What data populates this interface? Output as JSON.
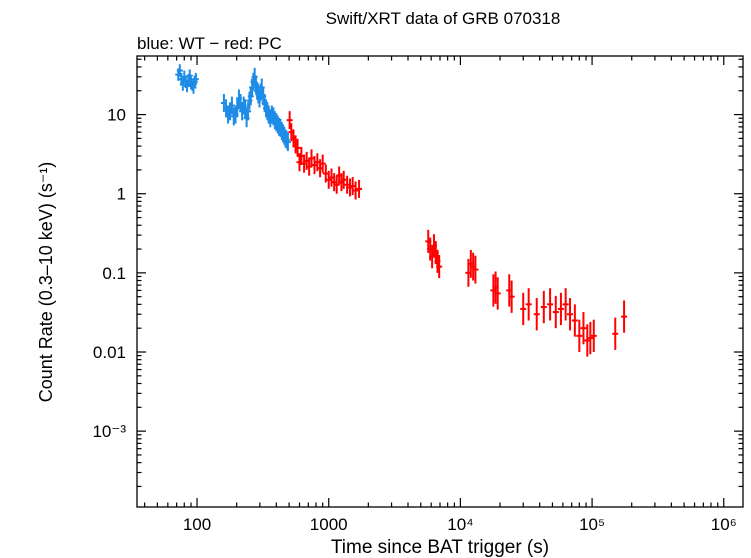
{
  "chart_data": {
    "type": "scatter",
    "title": "Swift/XRT data of GRB 070318",
    "subtitle": "blue: WT − red: PC",
    "xlabel": "Time since BAT trigger (s)",
    "ylabel": "Count Rate (0.3–10 keV) (s⁻¹)",
    "x_scale": "log",
    "y_scale": "log",
    "xlim": [
      35,
      1400000
    ],
    "ylim": [
      0.00011,
      55
    ],
    "x_ticks": [
      {
        "value": 100,
        "label": "100"
      },
      {
        "value": 1000,
        "label": "1000"
      },
      {
        "value": 10000,
        "label": "10⁴"
      },
      {
        "value": 100000,
        "label": "10⁵"
      },
      {
        "value": 1000000,
        "label": "10⁶"
      }
    ],
    "y_ticks": [
      {
        "value": 0.001,
        "label": "10⁻³"
      },
      {
        "value": 0.01,
        "label": "0.01"
      },
      {
        "value": 0.1,
        "label": "0.1"
      },
      {
        "value": 1,
        "label": "1"
      },
      {
        "value": 10,
        "label": "10"
      }
    ],
    "colors": {
      "WT": "#1e8ce6",
      "PC": "#ff0000",
      "axis": "#000000"
    },
    "series": [
      {
        "name": "WT",
        "color": "#1e8ce6",
        "points": [
          [
            72,
            32,
            1.2
          ],
          [
            74,
            36,
            1.2
          ],
          [
            76,
            28,
            1.2
          ],
          [
            78,
            24,
            1.2
          ],
          [
            80,
            30,
            1.2
          ],
          [
            82,
            26,
            1.2
          ],
          [
            84,
            23,
            1.2
          ],
          [
            86,
            27,
            1.2
          ],
          [
            88,
            31,
            1.2
          ],
          [
            90,
            25,
            1.2
          ],
          [
            92,
            24,
            1.2
          ],
          [
            94,
            22,
            1.2
          ],
          [
            96,
            26,
            1.2
          ],
          [
            98,
            28,
            1.2
          ],
          [
            160,
            14,
            1.3
          ],
          [
            166,
            12,
            1.3
          ],
          [
            172,
            10,
            1.3
          ],
          [
            178,
            11,
            1.3
          ],
          [
            184,
            13,
            1.3
          ],
          [
            190,
            9.5,
            1.3
          ],
          [
            196,
            10,
            1.3
          ],
          [
            202,
            12,
            1.3
          ],
          [
            208,
            16,
            1.3
          ],
          [
            214,
            14,
            1.3
          ],
          [
            220,
            11,
            1.3
          ],
          [
            226,
            13,
            1.3
          ],
          [
            232,
            12,
            1.3
          ],
          [
            238,
            9,
            1.3
          ],
          [
            244,
            11,
            1.3
          ],
          [
            250,
            15,
            1.3
          ],
          [
            256,
            17,
            1.3
          ],
          [
            262,
            22,
            1.3
          ],
          [
            268,
            26,
            1.3
          ],
          [
            274,
            30,
            1.3
          ],
          [
            280,
            24,
            1.3
          ],
          [
            286,
            20,
            1.3
          ],
          [
            292,
            18,
            1.3
          ],
          [
            298,
            16,
            1.3
          ],
          [
            304,
            19,
            1.3
          ],
          [
            310,
            22,
            1.3
          ],
          [
            318,
            17,
            1.3
          ],
          [
            326,
            14,
            1.3
          ],
          [
            334,
            12,
            1.3
          ],
          [
            342,
            11,
            1.3
          ],
          [
            350,
            10,
            1.3
          ],
          [
            360,
            9,
            1.3
          ],
          [
            370,
            10,
            1.3
          ],
          [
            380,
            9.5,
            1.3
          ],
          [
            390,
            8.5,
            1.3
          ],
          [
            400,
            8,
            1.3
          ],
          [
            410,
            7.5,
            1.3
          ],
          [
            420,
            7,
            1.3
          ],
          [
            430,
            6.8,
            1.3
          ],
          [
            440,
            6.2,
            1.3
          ],
          [
            450,
            5.8,
            1.3
          ],
          [
            460,
            5.4,
            1.3
          ],
          [
            470,
            5,
            1.3
          ],
          [
            480,
            4.8,
            1.3
          ],
          [
            490,
            4.5,
            1.3
          ]
        ]
      },
      {
        "name": "PC",
        "color": "#ff0000",
        "points": [
          [
            505,
            8.5,
            1.3
          ],
          [
            520,
            6,
            1.3
          ],
          [
            540,
            5,
            1.3
          ],
          [
            560,
            4.2,
            1.3
          ],
          [
            580,
            3.8,
            1.3
          ],
          [
            600,
            2.5,
            1.3
          ],
          [
            620,
            3,
            1.3
          ],
          [
            650,
            2.4,
            1.3
          ],
          [
            680,
            2.6,
            1.3
          ],
          [
            710,
            2.2,
            1.3
          ],
          [
            740,
            2.8,
            1.3
          ],
          [
            780,
            2.3,
            1.3
          ],
          [
            820,
            2.5,
            1.3
          ],
          [
            860,
            2.1,
            1.3
          ],
          [
            900,
            2.4,
            1.3
          ],
          [
            950,
            1.8,
            1.3
          ],
          [
            1000,
            1.5,
            1.3
          ],
          [
            1050,
            1.6,
            1.3
          ],
          [
            1100,
            1.4,
            1.3
          ],
          [
            1150,
            1.3,
            1.3
          ],
          [
            1200,
            1.7,
            1.3
          ],
          [
            1250,
            1.4,
            1.3
          ],
          [
            1300,
            1.5,
            1.3
          ],
          [
            1380,
            1.3,
            1.3
          ],
          [
            1450,
            1.2,
            1.3
          ],
          [
            1520,
            1.25,
            1.3
          ],
          [
            1600,
            1.1,
            1.3
          ],
          [
            1700,
            1.15,
            1.3
          ],
          [
            5700,
            0.25,
            1.4
          ],
          [
            5900,
            0.2,
            1.4
          ],
          [
            6100,
            0.16,
            1.4
          ],
          [
            6300,
            0.22,
            1.4
          ],
          [
            6500,
            0.18,
            1.4
          ],
          [
            6700,
            0.14,
            1.4
          ],
          [
            6900,
            0.12,
            1.4
          ],
          [
            11500,
            0.1,
            1.5
          ],
          [
            12000,
            0.13,
            1.5
          ],
          [
            12500,
            0.12,
            1.5
          ],
          [
            13000,
            0.11,
            1.5
          ],
          [
            17800,
            0.06,
            1.6
          ],
          [
            18500,
            0.065,
            1.6
          ],
          [
            19200,
            0.055,
            1.6
          ],
          [
            23500,
            0.06,
            1.6
          ],
          [
            24500,
            0.05,
            1.6
          ],
          [
            30000,
            0.035,
            1.6
          ],
          [
            33000,
            0.04,
            1.6
          ],
          [
            38000,
            0.03,
            1.6
          ],
          [
            43000,
            0.037,
            1.6
          ],
          [
            48000,
            0.04,
            1.6
          ],
          [
            53000,
            0.032,
            1.6
          ],
          [
            58000,
            0.035,
            1.6
          ],
          [
            63000,
            0.04,
            1.6
          ],
          [
            68000,
            0.03,
            1.6
          ],
          [
            74000,
            0.025,
            1.6
          ],
          [
            80000,
            0.016,
            1.6
          ],
          [
            86000,
            0.02,
            1.6
          ],
          [
            92000,
            0.014,
            1.6
          ],
          [
            97000,
            0.015,
            1.6
          ],
          [
            103000,
            0.016,
            1.6
          ],
          [
            150000,
            0.017,
            1.6
          ],
          [
            175000,
            0.028,
            1.6
          ]
        ]
      }
    ]
  }
}
